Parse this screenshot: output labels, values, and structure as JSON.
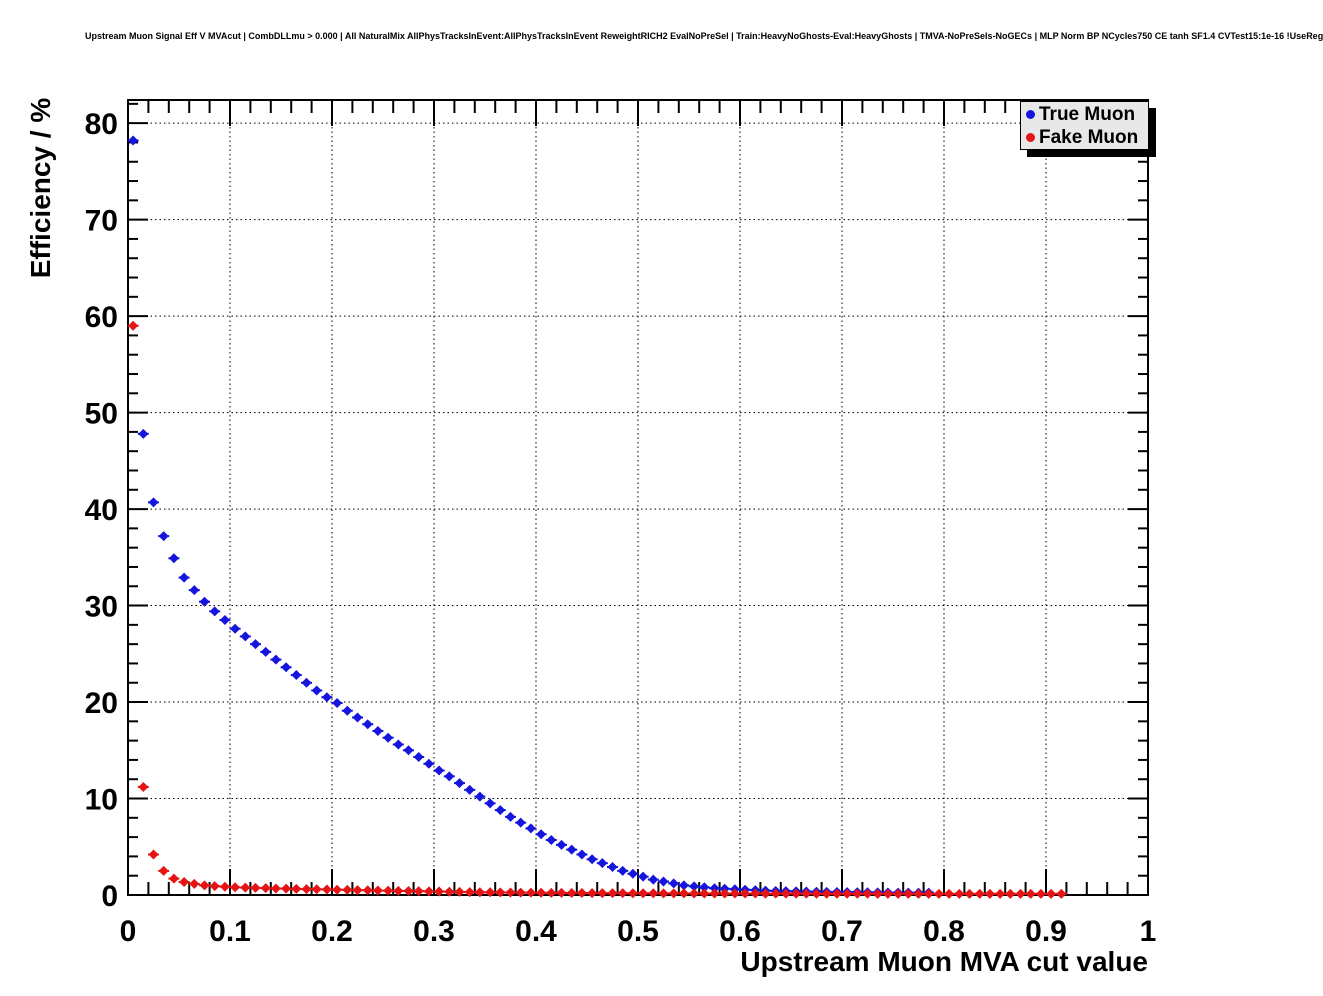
{
  "header": {
    "title": "Upstream Muon Signal Eff V MVAcut | CombDLLmu > 0.000 | All NaturalMix AllPhysTracksInEvent:AllPhysTracksInEvent ReweightRICH2 EvalNoPreSel | Train:HeavyNoGhosts-Eval:HeavyGhosts | TMVA-NoPreSels-NoGECs | MLP Norm BP NCycles750 CE tanh SF1.4 CVTest15:1e-16 !UseReg"
  },
  "legend": {
    "bg_color": "#e8e8e8",
    "shadow_color": "#000000",
    "entries": [
      {
        "label": "True Muon",
        "color": "#1515dd"
      },
      {
        "label": "Fake Muon",
        "color": "#e51515"
      }
    ]
  },
  "chart_data": {
    "type": "scatter",
    "title": "",
    "xlabel": "Upstream Muon MVA cut value",
    "ylabel": "Efficiency / %",
    "xlim": [
      0,
      1
    ],
    "ylim": [
      0,
      82.4
    ],
    "grid": true,
    "legend_position": "top-right",
    "x_tick_values": [
      0,
      0.1,
      0.2,
      0.3,
      0.4,
      0.5,
      0.6,
      0.7,
      0.8,
      0.9,
      1
    ],
    "x_tick_labels": [
      "0",
      "0.1",
      "0.2",
      "0.3",
      "0.4",
      "0.5",
      "0.6",
      "0.7",
      "0.8",
      "0.9",
      "1"
    ],
    "y_tick_values": [
      0,
      10,
      20,
      30,
      40,
      50,
      60,
      70,
      80
    ],
    "y_tick_labels": [
      "0",
      "10",
      "20",
      "30",
      "40",
      "50",
      "60",
      "70",
      "80"
    ],
    "x_minor_step": 0.02,
    "y_minor_step": 2,
    "series": [
      {
        "name": "True Muon",
        "color": "#1515dd",
        "marker": "diamond",
        "x_start": 0.005,
        "x_step": 0.01,
        "values": [
          78.2,
          47.8,
          40.7,
          37.2,
          34.9,
          32.9,
          31.6,
          30.4,
          29.4,
          28.5,
          27.6,
          26.8,
          26.0,
          25.2,
          24.4,
          23.6,
          22.8,
          22.0,
          21.2,
          20.5,
          19.9,
          19.1,
          18.4,
          17.7,
          17.0,
          16.3,
          15.6,
          15.0,
          14.3,
          13.6,
          12.9,
          12.3,
          11.6,
          10.9,
          10.2,
          9.5,
          8.8,
          8.1,
          7.5,
          6.9,
          6.3,
          5.7,
          5.2,
          4.7,
          4.2,
          3.7,
          3.3,
          2.9,
          2.5,
          2.2,
          1.9,
          1.6,
          1.4,
          1.2,
          1.0,
          0.9,
          0.8,
          0.7,
          0.65,
          0.6,
          0.55,
          0.5,
          0.45,
          0.42,
          0.4,
          0.38,
          0.36,
          0.34,
          0.32,
          0.31,
          0.3,
          0.29,
          0.28,
          0.27,
          0.26,
          0.25,
          0.25,
          0.24,
          0.24
        ]
      },
      {
        "name": "Fake Muon",
        "color": "#e51515",
        "marker": "diamond",
        "x_start": 0.005,
        "x_step": 0.01,
        "values": [
          59.0,
          11.2,
          4.2,
          2.5,
          1.7,
          1.35,
          1.15,
          1.0,
          0.92,
          0.86,
          0.8,
          0.77,
          0.74,
          0.71,
          0.68,
          0.66,
          0.63,
          0.61,
          0.59,
          0.57,
          0.55,
          0.53,
          0.51,
          0.49,
          0.47,
          0.45,
          0.43,
          0.42,
          0.4,
          0.38,
          0.36,
          0.34,
          0.32,
          0.3,
          0.29,
          0.28,
          0.27,
          0.26,
          0.25,
          0.24,
          0.23,
          0.22,
          0.22,
          0.21,
          0.21,
          0.2,
          0.2,
          0.19,
          0.19,
          0.18,
          0.18,
          0.18,
          0.17,
          0.17,
          0.17,
          0.16,
          0.16,
          0.16,
          0.15,
          0.15,
          0.15,
          0.15,
          0.14,
          0.14,
          0.14,
          0.14,
          0.14,
          0.13,
          0.13,
          0.13,
          0.13,
          0.13,
          0.13,
          0.12,
          0.12,
          0.12,
          0.12,
          0.12,
          0.12,
          0.12,
          0.12,
          0.12,
          0.12,
          0.12,
          0.12,
          0.12,
          0.12,
          0.12,
          0.12,
          0.12,
          0.12,
          0.12
        ]
      }
    ]
  }
}
